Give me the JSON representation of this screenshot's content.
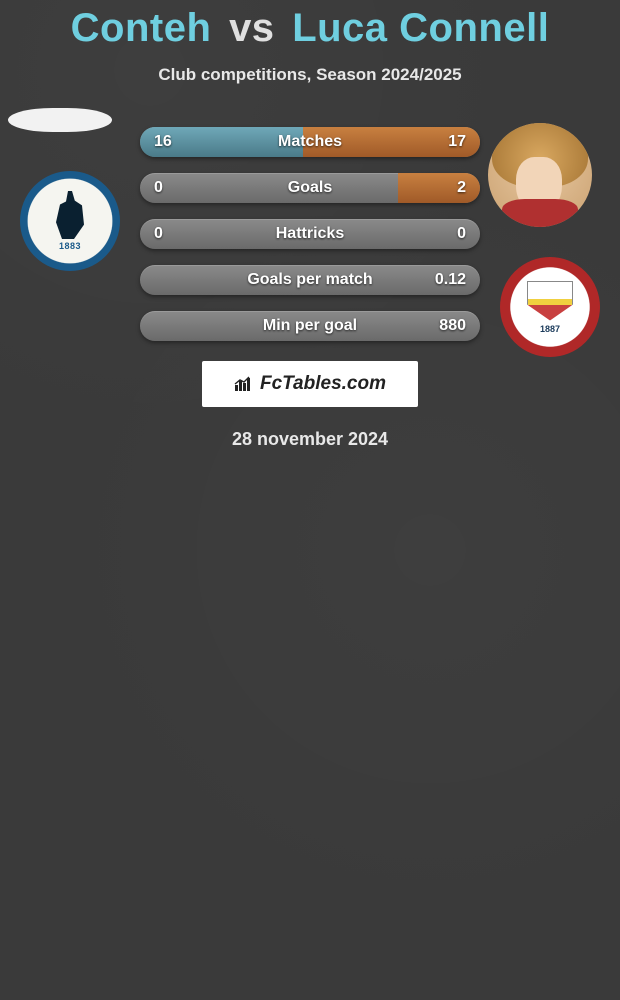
{
  "title": {
    "player1": "Conteh",
    "vs": "vs",
    "player2": "Luca Connell"
  },
  "subtitle": "Club competitions, Season 2024/2025",
  "colors": {
    "player1_accent": "#6fcfe0",
    "player2_accent": "#6fcfe0",
    "fill_p1": "#6fa8b8",
    "fill_p2": "#c88040",
    "bar_bg": "#7a7a7a"
  },
  "crests": {
    "left": {
      "name": "Bristol Rovers FC",
      "est": "1883"
    },
    "right": {
      "name": "Barnsley FC",
      "est": "1887"
    }
  },
  "stats": [
    {
      "label": "Matches",
      "p1": "16",
      "p2": "17",
      "p1_pct": 48,
      "p2_pct": 52
    },
    {
      "label": "Goals",
      "p1": "0",
      "p2": "2",
      "p1_pct": 0,
      "p2_pct": 24
    },
    {
      "label": "Hattricks",
      "p1": "0",
      "p2": "0",
      "p1_pct": 0,
      "p2_pct": 0
    },
    {
      "label": "Goals per match",
      "p1": "",
      "p2": "0.12",
      "p1_pct": 0,
      "p2_pct": 0
    },
    {
      "label": "Min per goal",
      "p1": "",
      "p2": "880",
      "p1_pct": 0,
      "p2_pct": 0
    }
  ],
  "watermark": "FcTables.com",
  "date": "28 november 2024"
}
